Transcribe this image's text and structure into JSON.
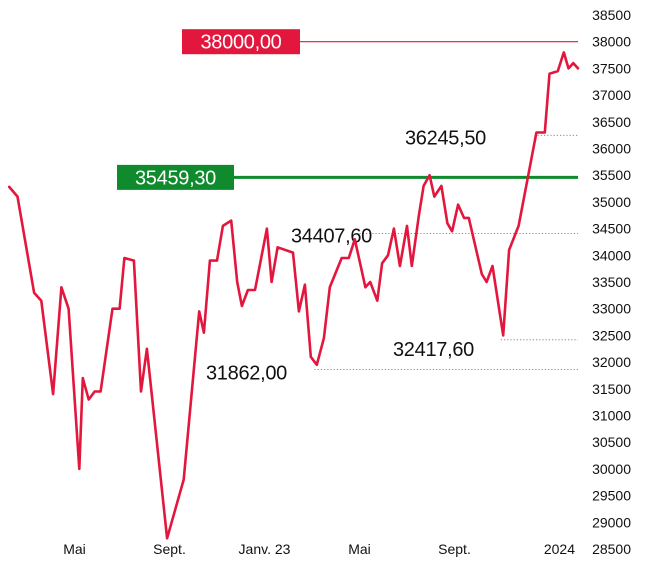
{
  "chart_data": {
    "type": "line",
    "y_ticks": [
      28500,
      29000,
      29500,
      30000,
      30500,
      31000,
      31500,
      32000,
      32500,
      33000,
      33500,
      34000,
      34500,
      35000,
      35500,
      36000,
      36500,
      37000,
      37500,
      38000,
      38500
    ],
    "y_tick_labels": [
      "28500",
      "29000",
      "29500",
      "30000",
      "30500",
      "31000",
      "31500",
      "32000",
      "32500",
      "33000",
      "33500",
      "34000",
      "34500",
      "35000",
      "35500",
      "36000",
      "36500",
      "37000",
      "37500",
      "38000",
      "38500"
    ],
    "x_tick_labels": [
      "Mai",
      "Sept.",
      "Janv. 23",
      "Mai",
      "Sept.",
      "2024"
    ],
    "x_tick_months": [
      5,
      9,
      13,
      17,
      21,
      25
    ],
    "x_range_months": [
      2.2,
      26.2
    ],
    "ylim": [
      28500,
      38500
    ],
    "series": [
      {
        "color": "#e3173e",
        "points": [
          [
            2.25,
            35280
          ],
          [
            2.6,
            35100
          ],
          [
            3.3,
            33300
          ],
          [
            3.6,
            33150
          ],
          [
            4.1,
            31400
          ],
          [
            4.45,
            33400
          ],
          [
            4.75,
            33000
          ],
          [
            5.2,
            30000
          ],
          [
            5.35,
            31700
          ],
          [
            5.6,
            31300
          ],
          [
            5.85,
            31450
          ],
          [
            6.1,
            31450
          ],
          [
            6.6,
            33000
          ],
          [
            6.9,
            33000
          ],
          [
            7.1,
            33950
          ],
          [
            7.5,
            33900
          ],
          [
            7.8,
            31450
          ],
          [
            8.05,
            32250
          ],
          [
            8.9,
            28700
          ],
          [
            9.6,
            29800
          ],
          [
            10.25,
            32950
          ],
          [
            10.45,
            32550
          ],
          [
            10.7,
            33900
          ],
          [
            11.0,
            33900
          ],
          [
            11.25,
            34550
          ],
          [
            11.6,
            34650
          ],
          [
            11.85,
            33500
          ],
          [
            12.05,
            33050
          ],
          [
            12.3,
            33350
          ],
          [
            12.6,
            33350
          ],
          [
            13.1,
            34500
          ],
          [
            13.3,
            33500
          ],
          [
            13.55,
            34150
          ],
          [
            14.2,
            34050
          ],
          [
            14.45,
            32950
          ],
          [
            14.7,
            33450
          ],
          [
            14.95,
            32100
          ],
          [
            15.2,
            31950
          ],
          [
            15.5,
            32450
          ],
          [
            15.75,
            33400
          ],
          [
            16.25,
            33950
          ],
          [
            16.55,
            33950
          ],
          [
            16.8,
            34300
          ],
          [
            17.25,
            33400
          ],
          [
            17.45,
            33500
          ],
          [
            17.75,
            33150
          ],
          [
            17.95,
            33850
          ],
          [
            18.2,
            34000
          ],
          [
            18.45,
            34500
          ],
          [
            18.7,
            33800
          ],
          [
            19.0,
            34550
          ],
          [
            19.2,
            33800
          ],
          [
            19.5,
            34750
          ],
          [
            19.7,
            35300
          ],
          [
            19.95,
            35500
          ],
          [
            20.15,
            35100
          ],
          [
            20.45,
            35300
          ],
          [
            20.7,
            34600
          ],
          [
            20.9,
            34450
          ],
          [
            21.15,
            34950
          ],
          [
            21.4,
            34700
          ],
          [
            21.6,
            34700
          ],
          [
            22.15,
            33650
          ],
          [
            22.35,
            33500
          ],
          [
            22.6,
            33800
          ],
          [
            23.05,
            32500
          ],
          [
            23.3,
            34100
          ],
          [
            23.7,
            34550
          ],
          [
            24.15,
            35600
          ],
          [
            24.45,
            36300
          ],
          [
            24.8,
            36300
          ],
          [
            25.0,
            37400
          ],
          [
            25.35,
            37450
          ],
          [
            25.6,
            37800
          ],
          [
            25.8,
            37500
          ],
          [
            26.0,
            37600
          ],
          [
            26.2,
            37500
          ]
        ]
      }
    ],
    "annotations": [
      {
        "label": "36245,50",
        "value": 36245.5,
        "start_month": 24.5
      },
      {
        "label": "34407,60",
        "value": 34407.6,
        "start_month": 17.0
      },
      {
        "label": "32417,60",
        "value": 32417.6,
        "start_month": 22.95
      },
      {
        "label": "31862,00",
        "value": 31862.0,
        "start_month": 15.1
      }
    ],
    "reference_lines": [
      {
        "label": "38000,00",
        "value": 38000,
        "color": "#e3173e",
        "badge_color": "#e3173e"
      },
      {
        "label": "35459,30",
        "value": 35459.3,
        "color": "#0f8a2c",
        "badge_color": "#0f8a2c"
      }
    ],
    "grid": false,
    "title": "",
    "xlabel": "",
    "ylabel": ""
  }
}
